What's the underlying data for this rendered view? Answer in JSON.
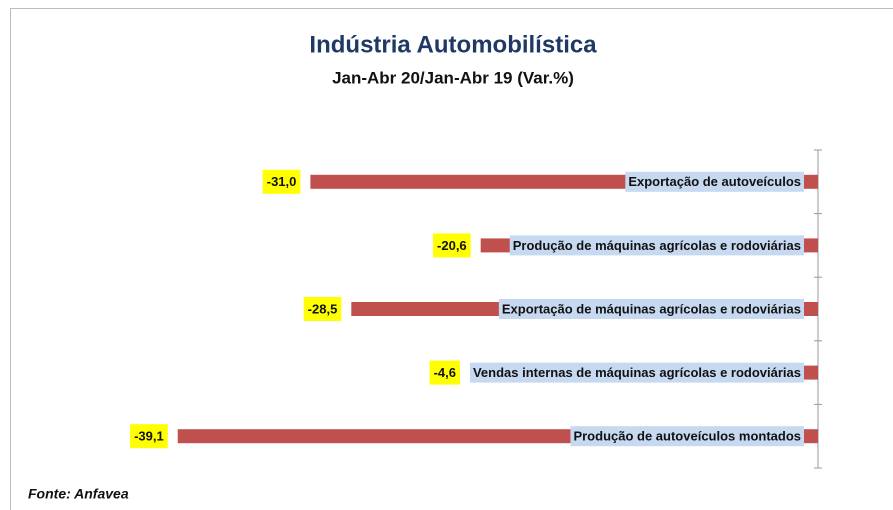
{
  "chart_data": {
    "type": "barh",
    "title": "Indústria Automobilística",
    "subtitle": "Jan-Abr 20/Jan-Abr 19 (Var.%)",
    "categories": [
      "Exportação de autoveículos",
      "Produção de máquinas agrícolas e rodoviárias",
      "Exportação de máquinas agrícolas e rodoviárias",
      "Vendas internas de máquinas agrícolas e rodoviárias",
      "Produção de autoveículos montados"
    ],
    "values": [
      -31.0,
      -20.6,
      -28.5,
      -4.6,
      -39.1
    ],
    "value_labels": [
      "-31,0",
      "-20,6",
      "-28,5",
      "-4,6",
      "-39,1"
    ],
    "color": "#c0504d",
    "xlim": [
      -40,
      0
    ],
    "source": "Fonte: Anfavea"
  }
}
